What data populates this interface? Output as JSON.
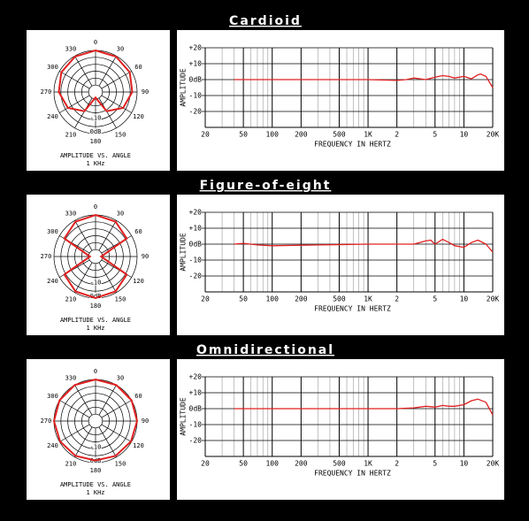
{
  "chart_data": [
    {
      "type": "polar",
      "title": "Cardioid",
      "caption": "AMPLITUDE VS. ANGLE",
      "frequency": "1 KHz",
      "theta": [
        0,
        30,
        60,
        90,
        120,
        150,
        180,
        210,
        240,
        270,
        300,
        330
      ],
      "values": [
        0,
        -0.5,
        -1.5,
        -3.5,
        -7,
        -14,
        -26,
        -14,
        -7,
        -3.5,
        -1.5,
        -0.5
      ],
      "color": "#e02020",
      "thetaticks": [
        0,
        30,
        60,
        90,
        120,
        150,
        180,
        210,
        240,
        270,
        300,
        330
      ],
      "rlim": [
        -30,
        0
      ],
      "rgrid": [
        -25,
        -20,
        -15,
        -10,
        -5,
        0
      ],
      "rticks": [
        -10,
        {
          "value": 0,
          "label": "0dB"
        }
      ]
    },
    {
      "type": "response",
      "xlabel": "FREQUENCY IN HERTZ",
      "ylabel": "AMPLITUDE",
      "log_x": true,
      "x": [
        40,
        100,
        300,
        1000,
        2000,
        2500,
        3000,
        3500,
        4000,
        5000,
        6000,
        7000,
        8000,
        10000,
        12000,
        14000,
        15000,
        17000,
        20000
      ],
      "values": [
        0,
        0,
        0,
        0,
        -0.5,
        0,
        1,
        0.5,
        0,
        1.5,
        2.5,
        2,
        1,
        2,
        0.5,
        3,
        3.5,
        2,
        -5
      ],
      "color": "#e02020",
      "xlim": [
        20,
        20000
      ],
      "xticks": [
        20,
        50,
        100,
        200,
        500,
        {
          "value": 1000,
          "label": "1K"
        },
        {
          "value": 2000,
          "label": "2"
        },
        {
          "value": 5000,
          "label": "5"
        },
        {
          "value": 10000,
          "label": "10"
        },
        {
          "value": 20000,
          "label": "20K"
        }
      ],
      "xminor": [
        30,
        40,
        60,
        70,
        80,
        90,
        300,
        400,
        600,
        700,
        800,
        900,
        3000,
        4000,
        6000,
        7000,
        8000,
        9000
      ],
      "ylim": [
        -30,
        20
      ],
      "yticks": [
        {
          "value": 20,
          "label": "+20"
        },
        {
          "value": 10,
          "label": "+10"
        },
        {
          "value": 0,
          "label": "0dB"
        },
        -10,
        -20
      ]
    },
    {
      "type": "polar",
      "title": "Figure-of-eight",
      "caption": "AMPLITUDE VS. ANGLE",
      "frequency": "1 KHz",
      "theta": [
        0,
        30,
        60,
        90,
        120,
        150,
        180,
        210,
        240,
        270,
        300,
        330
      ],
      "values": [
        0,
        -1,
        -4,
        -26,
        -4,
        -1,
        0,
        -1,
        -4,
        -26,
        -4,
        -1
      ],
      "color": "#e02020",
      "thetaticks": [
        0,
        30,
        60,
        90,
        120,
        150,
        180,
        210,
        240,
        270,
        300,
        330
      ],
      "rlim": [
        -30,
        0
      ],
      "rgrid": [
        -25,
        -20,
        -15,
        -10,
        -5,
        0
      ],
      "rticks": [
        -10,
        {
          "value": 0,
          "label": "0dB"
        }
      ]
    },
    {
      "type": "response",
      "xlabel": "FREQUENCY IN HERTZ",
      "ylabel": "AMPLITUDE",
      "log_x": true,
      "x": [
        40,
        50,
        70,
        100,
        300,
        1000,
        2000,
        3000,
        4000,
        4500,
        5000,
        6000,
        7000,
        8000,
        10000,
        12000,
        14000,
        17000,
        20000
      ],
      "values": [
        0,
        0.5,
        -0.5,
        -1,
        -0.5,
        0,
        0,
        0,
        2,
        2.5,
        0,
        3,
        1,
        -1,
        -2,
        1,
        2.5,
        0,
        -5
      ],
      "color": "#e02020",
      "xlim": [
        20,
        20000
      ],
      "xticks": [
        20,
        50,
        100,
        200,
        500,
        {
          "value": 1000,
          "label": "1K"
        },
        {
          "value": 2000,
          "label": "2"
        },
        {
          "value": 5000,
          "label": "5"
        },
        {
          "value": 10000,
          "label": "10"
        },
        {
          "value": 20000,
          "label": "20K"
        }
      ],
      "xminor": [
        30,
        40,
        60,
        70,
        80,
        90,
        300,
        400,
        600,
        700,
        800,
        900,
        3000,
        4000,
        6000,
        7000,
        8000,
        9000
      ],
      "ylim": [
        -30,
        20
      ],
      "yticks": [
        {
          "value": 20,
          "label": "+20"
        },
        {
          "value": 10,
          "label": "+10"
        },
        {
          "value": 0,
          "label": "0dB"
        },
        -10,
        -20
      ]
    },
    {
      "type": "polar",
      "title": "Omnidirectional",
      "caption": "AMPLITUDE VS. ANGLE",
      "frequency": "1 KHz",
      "theta": [
        0,
        30,
        60,
        90,
        120,
        150,
        180,
        210,
        240,
        270,
        300,
        330
      ],
      "values": [
        0,
        0,
        0,
        0,
        -0.5,
        -1,
        -1.5,
        -1,
        -0.5,
        0,
        0,
        0
      ],
      "color": "#e02020",
      "thetaticks": [
        0,
        30,
        60,
        90,
        120,
        150,
        180,
        210,
        240,
        270,
        300,
        330
      ],
      "rlim": [
        -30,
        0
      ],
      "rgrid": [
        -25,
        -20,
        -15,
        -10,
        -5,
        0
      ],
      "rticks": [
        -10,
        {
          "value": 0,
          "label": "0dB"
        }
      ]
    },
    {
      "type": "response",
      "xlabel": "FREQUENCY IN HERTZ",
      "ylabel": "AMPLITUDE",
      "log_x": true,
      "x": [
        40,
        100,
        300,
        1000,
        2000,
        3000,
        4000,
        5000,
        6000,
        7000,
        8000,
        10000,
        12000,
        14000,
        17000,
        20000
      ],
      "values": [
        0,
        0,
        0,
        0,
        0,
        0.5,
        1.5,
        1,
        2,
        1.5,
        1.5,
        2.5,
        5,
        6,
        4,
        -4
      ],
      "color": "#e02020",
      "xlim": [
        20,
        20000
      ],
      "xticks": [
        20,
        50,
        100,
        200,
        500,
        {
          "value": 1000,
          "label": "1K"
        },
        {
          "value": 2000,
          "label": "2"
        },
        {
          "value": 5000,
          "label": "5"
        },
        {
          "value": 10000,
          "label": "10"
        },
        {
          "value": 20000,
          "label": "20K"
        }
      ],
      "xminor": [
        30,
        40,
        60,
        70,
        80,
        90,
        300,
        400,
        600,
        700,
        800,
        900,
        3000,
        4000,
        6000,
        7000,
        8000,
        9000
      ],
      "ylim": [
        -30,
        20
      ],
      "yticks": [
        {
          "value": 20,
          "label": "+20"
        },
        {
          "value": 10,
          "label": "+10"
        },
        {
          "value": 0,
          "label": "0dB"
        },
        -10,
        -20
      ]
    }
  ]
}
